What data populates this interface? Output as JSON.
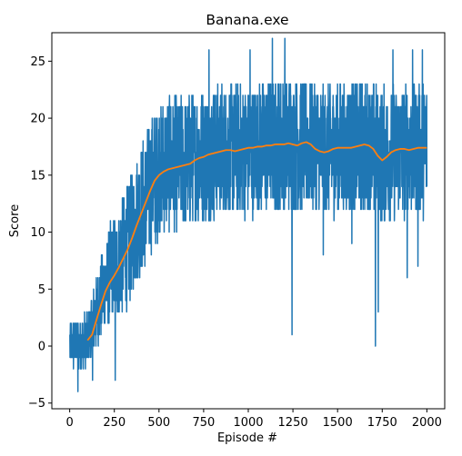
{
  "chart_data": {
    "type": "line",
    "title": "Banana.exe",
    "xlabel": "Episode #",
    "ylabel": "Score",
    "xlim": [
      -100,
      2100
    ],
    "ylim": [
      -5.5,
      27.5
    ],
    "xticks": [
      0,
      250,
      500,
      750,
      1000,
      1250,
      1500,
      1750,
      2000
    ],
    "yticks": [
      -5,
      0,
      5,
      10,
      15,
      20,
      25
    ],
    "grid": false,
    "legend": "none",
    "episodes": {
      "start": 1,
      "end": 2000
    },
    "series": [
      {
        "key": "score",
        "color": "#1f77b4",
        "style": "noisy per-episode score",
        "trend": [
          [
            1,
            0
          ],
          [
            100,
            0.5
          ],
          [
            150,
            3
          ],
          [
            200,
            5.5
          ],
          [
            250,
            7
          ],
          [
            300,
            8
          ],
          [
            350,
            10
          ],
          [
            400,
            12
          ],
          [
            450,
            14
          ],
          [
            500,
            15.5
          ],
          [
            550,
            16
          ],
          [
            600,
            16
          ],
          [
            650,
            16
          ],
          [
            700,
            16.5
          ],
          [
            750,
            16.8
          ],
          [
            800,
            17
          ],
          [
            850,
            17.2
          ],
          [
            900,
            17.2
          ],
          [
            950,
            17.3
          ],
          [
            1000,
            17.2
          ],
          [
            1050,
            17.4
          ],
          [
            1100,
            17.5
          ],
          [
            1150,
            17.6
          ],
          [
            1200,
            17.7
          ],
          [
            1250,
            17.8
          ],
          [
            1300,
            17.7
          ],
          [
            1350,
            17.6
          ],
          [
            1400,
            17.3
          ],
          [
            1450,
            17.2
          ],
          [
            1500,
            17.3
          ],
          [
            1550,
            17.4
          ],
          [
            1600,
            17.5
          ],
          [
            1650,
            17.6
          ],
          [
            1700,
            17.2
          ],
          [
            1750,
            16.8
          ],
          [
            1800,
            17
          ],
          [
            1850,
            17.1
          ],
          [
            1900,
            17.2
          ],
          [
            1950,
            17.3
          ],
          [
            2000,
            17.3
          ]
        ],
        "spread": [
          [
            1,
            1.5
          ],
          [
            100,
            2
          ],
          [
            200,
            3
          ],
          [
            300,
            4
          ],
          [
            400,
            4.5
          ],
          [
            500,
            4.5
          ],
          [
            1000,
            4.5
          ],
          [
            2000,
            4.5
          ]
        ],
        "min": -4,
        "max": 27,
        "outliers": [
          [
            46,
            -4
          ],
          [
            128,
            -3
          ],
          [
            255,
            -3
          ],
          [
            1135,
            1
          ],
          [
            1245,
            1
          ],
          [
            1712,
            0
          ],
          [
            1728,
            3
          ],
          [
            1890,
            6
          ],
          [
            1950,
            7
          ],
          [
            1580,
            9
          ],
          [
            1420,
            8
          ]
        ],
        "peaks": [
          [
            780,
            26
          ],
          [
            1010,
            26
          ],
          [
            1135,
            27
          ],
          [
            1205,
            27
          ],
          [
            1810,
            26
          ],
          [
            1920,
            26
          ],
          [
            1975,
            26
          ]
        ]
      },
      {
        "key": "avg",
        "color": "#ff7f0e",
        "style": "100-episode moving average",
        "values": [
          [
            100,
            0.5
          ],
          [
            125,
            1
          ],
          [
            150,
            2.3
          ],
          [
            175,
            3.6
          ],
          [
            200,
            4.8
          ],
          [
            225,
            5.6
          ],
          [
            250,
            6.2
          ],
          [
            275,
            6.9
          ],
          [
            300,
            7.7
          ],
          [
            325,
            8.5
          ],
          [
            350,
            9.5
          ],
          [
            375,
            10.6
          ],
          [
            400,
            11.6
          ],
          [
            425,
            12.6
          ],
          [
            450,
            13.6
          ],
          [
            475,
            14.5
          ],
          [
            500,
            15
          ],
          [
            525,
            15.3
          ],
          [
            550,
            15.5
          ],
          [
            575,
            15.6
          ],
          [
            600,
            15.7
          ],
          [
            625,
            15.8
          ],
          [
            650,
            15.9
          ],
          [
            675,
            16
          ],
          [
            700,
            16.3
          ],
          [
            725,
            16.5
          ],
          [
            750,
            16.6
          ],
          [
            775,
            16.8
          ],
          [
            800,
            16.9
          ],
          [
            825,
            17
          ],
          [
            850,
            17.1
          ],
          [
            875,
            17.2
          ],
          [
            900,
            17.2
          ],
          [
            925,
            17.1
          ],
          [
            950,
            17.2
          ],
          [
            975,
            17.3
          ],
          [
            1000,
            17.4
          ],
          [
            1025,
            17.4
          ],
          [
            1050,
            17.5
          ],
          [
            1075,
            17.5
          ],
          [
            1100,
            17.6
          ],
          [
            1125,
            17.6
          ],
          [
            1150,
            17.7
          ],
          [
            1175,
            17.7
          ],
          [
            1200,
            17.7
          ],
          [
            1225,
            17.8
          ],
          [
            1250,
            17.7
          ],
          [
            1275,
            17.6
          ],
          [
            1300,
            17.8
          ],
          [
            1325,
            17.9
          ],
          [
            1350,
            17.7
          ],
          [
            1375,
            17.3
          ],
          [
            1400,
            17.1
          ],
          [
            1425,
            17
          ],
          [
            1450,
            17.1
          ],
          [
            1475,
            17.3
          ],
          [
            1500,
            17.4
          ],
          [
            1525,
            17.4
          ],
          [
            1550,
            17.4
          ],
          [
            1575,
            17.4
          ],
          [
            1600,
            17.5
          ],
          [
            1625,
            17.6
          ],
          [
            1650,
            17.7
          ],
          [
            1675,
            17.6
          ],
          [
            1700,
            17.3
          ],
          [
            1725,
            16.7
          ],
          [
            1750,
            16.3
          ],
          [
            1775,
            16.6
          ],
          [
            1800,
            17
          ],
          [
            1825,
            17.2
          ],
          [
            1850,
            17.3
          ],
          [
            1875,
            17.3
          ],
          [
            1900,
            17.2
          ],
          [
            1925,
            17.3
          ],
          [
            1950,
            17.4
          ],
          [
            1975,
            17.4
          ],
          [
            2000,
            17.4
          ]
        ]
      }
    ]
  }
}
